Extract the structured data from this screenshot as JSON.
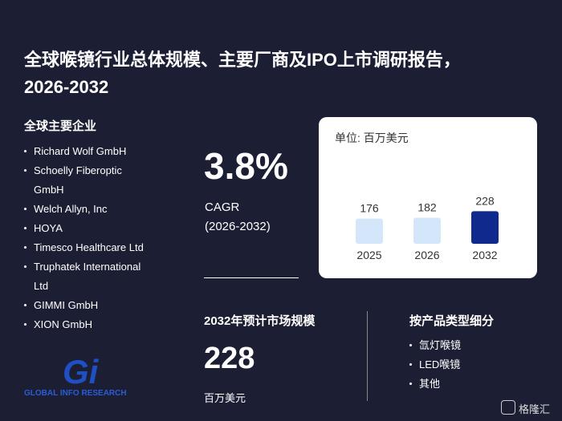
{
  "header": {
    "title": "全球喉镜行业总体规模、主要厂商及IPO上市调研报告，2026-2032"
  },
  "companies": {
    "heading": "全球主要企业",
    "items": [
      "Richard Wolf GmbH",
      "Schoelly Fiberoptic GmbH",
      "Welch Allyn, Inc",
      "HOYA",
      "Timesco Healthcare Ltd",
      "Truphatek International Ltd",
      "GIMMI GmbH",
      "XION GmbH"
    ]
  },
  "cagr": {
    "value": "3.8%",
    "label": "CAGR",
    "period": "(2026-2032)"
  },
  "market_size": {
    "heading": "2032年预计市场规模",
    "value": "228",
    "unit": "百万美元"
  },
  "segments": {
    "heading": "按产品类型细分",
    "items": [
      "氙灯喉镜",
      "LED喉镜",
      "其他"
    ]
  },
  "logo": {
    "mark": "Gi",
    "text": "GLOBAL INFO RESEARCH"
  },
  "source": {
    "text": "格隆汇"
  },
  "chart_data": {
    "type": "bar",
    "unit_label": "单位: 百万美元",
    "categories": [
      "2025",
      "2026",
      "2032"
    ],
    "values": [
      176,
      182,
      228
    ],
    "colors": [
      "#d4e6fa",
      "#d4e6fa",
      "#0f2a8c"
    ],
    "ylim": [
      0,
      230
    ]
  }
}
